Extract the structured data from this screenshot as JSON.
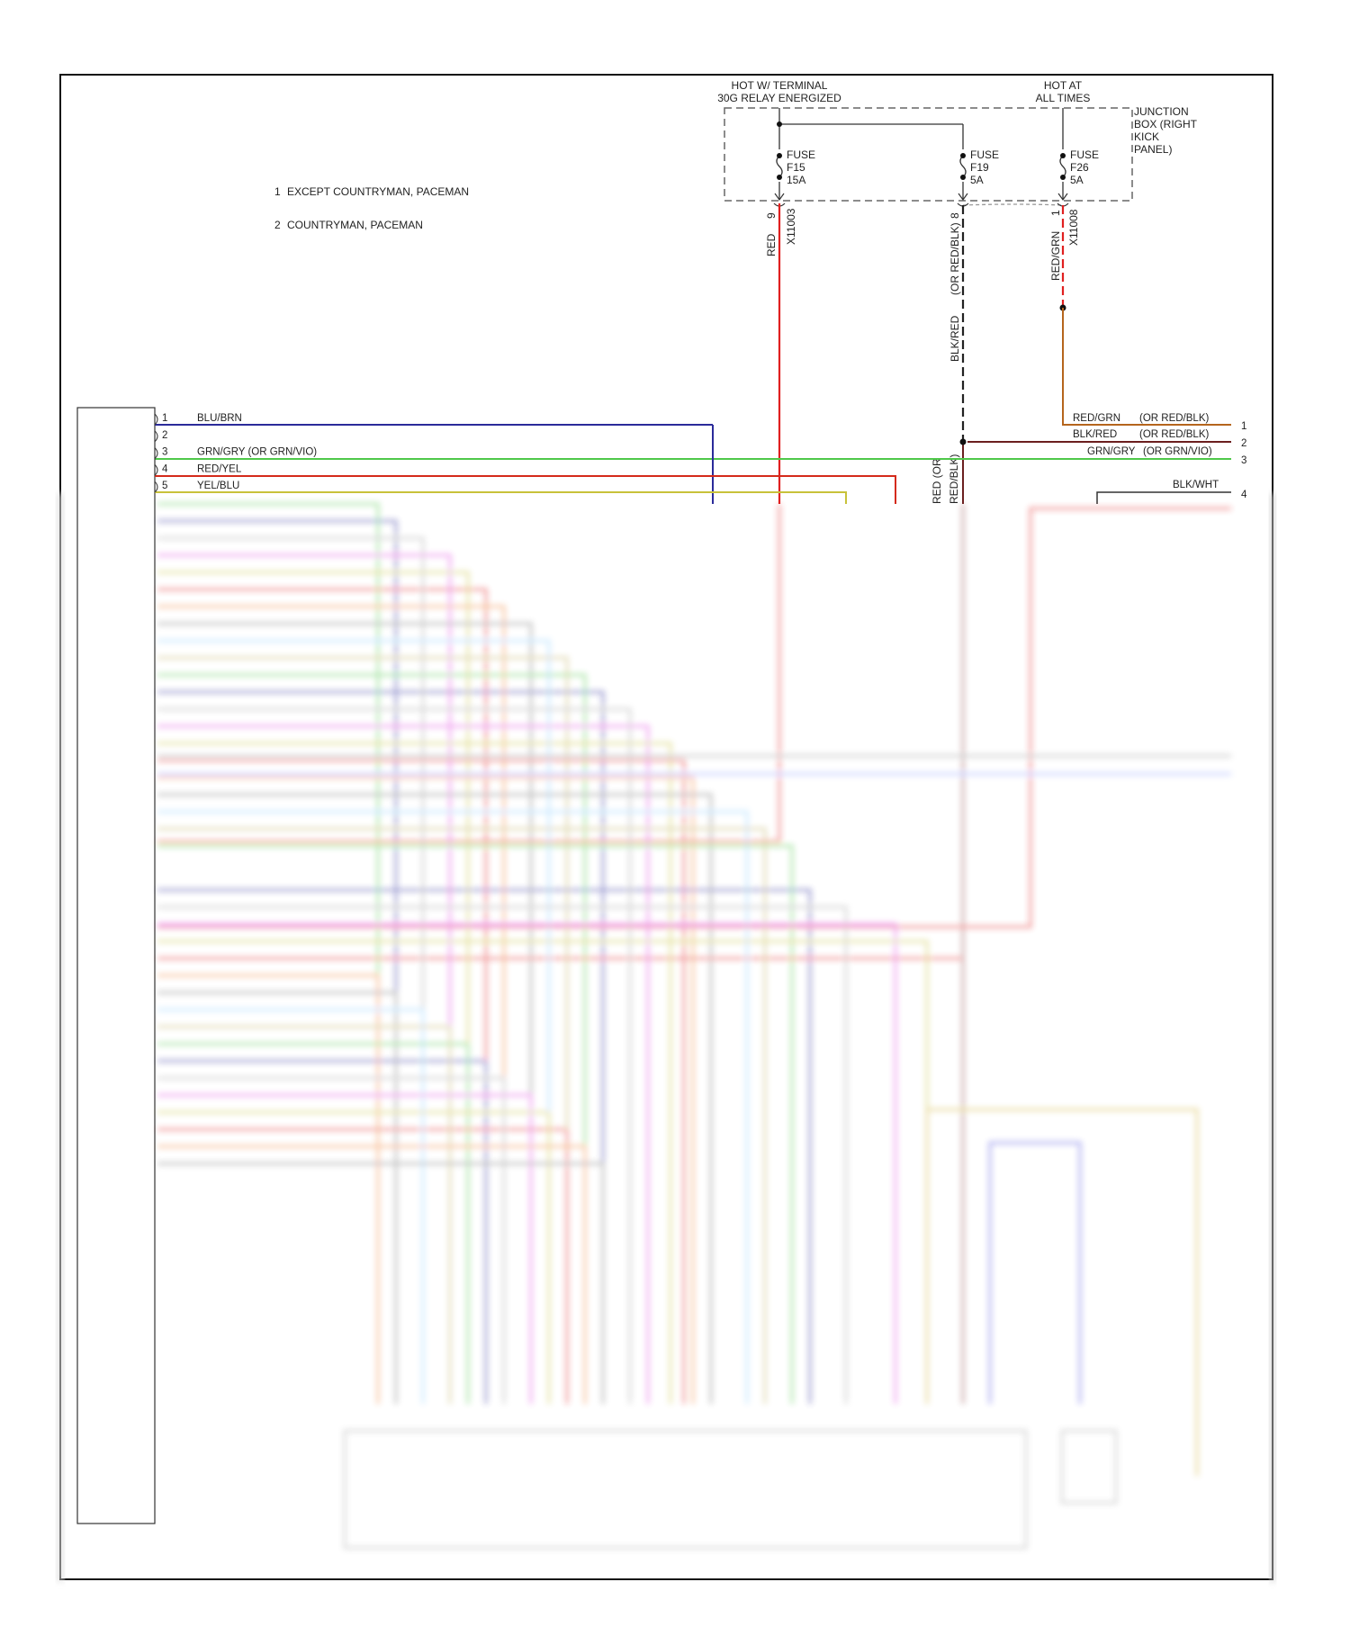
{
  "notes": [
    {
      "num": "1",
      "text": "EXCEPT COUNTRYMAN, PACEMAN"
    },
    {
      "num": "2",
      "text": "COUNTRYMAN, PACEMAN"
    }
  ],
  "power": {
    "relay_label_1": "HOT W/ TERMINAL",
    "relay_label_2": "30G RELAY ENERGIZED",
    "always_label_1": "HOT AT",
    "always_label_2": "ALL TIMES"
  },
  "junction_box": {
    "label": [
      "JUNCTION",
      "BOX (RIGHT",
      "KICK",
      "PANEL)"
    ],
    "fuses": [
      {
        "word": "FUSE",
        "id": "F15",
        "rating": "15A",
        "pin": "9",
        "connector": "X11003",
        "wire": "RED"
      },
      {
        "word": "FUSE",
        "id": "F19",
        "rating": "5A",
        "pin": "8",
        "wire_alt": "(OR RED/BLK)",
        "wire": "BLK/RED"
      },
      {
        "word": "FUSE",
        "id": "F26",
        "rating": "5A",
        "pin": "1",
        "connector": "X11008",
        "wire": "RED/GRN"
      }
    ]
  },
  "left_connector": {
    "pins": [
      {
        "num": "1",
        "wire": "BLU/BRN",
        "color": "#2b2b9a"
      },
      {
        "num": "2",
        "wire": "",
        "color": ""
      },
      {
        "num": "3",
        "wire": "GRN/GRY   (OR GRN/VIO)",
        "color": "#4fc84a"
      },
      {
        "num": "4",
        "wire": "RED/YEL",
        "color": "#d42a1a"
      },
      {
        "num": "5",
        "wire": "YEL/BLU",
        "color": "#c8c23a"
      }
    ]
  },
  "right_connector": {
    "pins": [
      {
        "num": "1",
        "wire": "RED/GRN",
        "alt": "(OR RED/BLK)",
        "color": "#b5651d"
      },
      {
        "num": "2",
        "wire": "BLK/RED",
        "alt": "(OR RED/BLK)",
        "color": "#6b1f1f"
      },
      {
        "num": "3",
        "wire": "GRN/GRY",
        "alt": "(OR GRN/VIO)",
        "color": "#4fc84a"
      },
      {
        "num": "4",
        "wire": "BLK/WHT",
        "alt": "",
        "color": "#333333"
      }
    ]
  },
  "vertical_label": {
    "line1": "RED (OR",
    "line2": "RED/BLK)"
  },
  "colors": {
    "red": "#e02020",
    "brown": "#b5651d",
    "frame": "#111111"
  }
}
